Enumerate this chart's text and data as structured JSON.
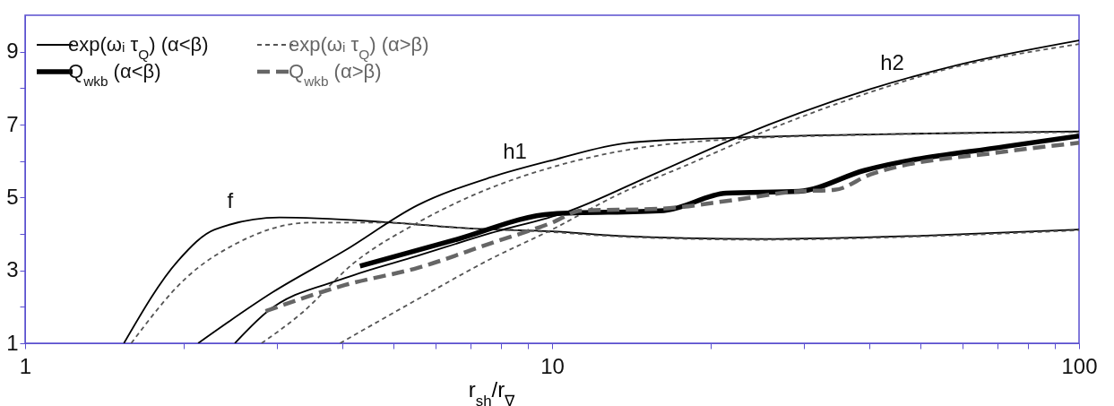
{
  "chart_data": {
    "type": "line",
    "xlabel": "r$_{sh}$/r$_{∇}$",
    "log": "x",
    "xlim": [
      1,
      100
    ],
    "ylim": [
      1,
      10
    ],
    "xticks": [
      1,
      {
        "value": 2,
        "label": null
      },
      {
        "value": 3,
        "label": null
      },
      {
        "value": 4,
        "label": null
      },
      {
        "value": 5,
        "label": null
      },
      {
        "value": 6,
        "label": null
      },
      {
        "value": 7,
        "label": null
      },
      {
        "value": 8,
        "label": null
      },
      {
        "value": 9,
        "label": null
      },
      10,
      {
        "value": 20,
        "label": null
      },
      {
        "value": 30,
        "label": null
      },
      {
        "value": 40,
        "label": null
      },
      {
        "value": 50,
        "label": null
      },
      {
        "value": 60,
        "label": null
      },
      {
        "value": 70,
        "label": null
      },
      {
        "value": 80,
        "label": null
      },
      {
        "value": 90,
        "label": null
      },
      100
    ],
    "yticks": [
      1,
      {
        "value": 2,
        "label": null
      },
      3,
      {
        "value": 4,
        "label": null
      },
      5,
      {
        "value": 6,
        "label": null
      },
      7,
      {
        "value": 8,
        "label": null
      },
      9
    ],
    "grid": false,
    "legend": "top left",
    "marker": "none",
    "series": [
      {
        "name": "exp(ωᵢ τ$_{Q}$) (α<β)",
        "color": "#000000",
        "line_style": "solid",
        "x": [
          1.54,
          1.95,
          2.29,
          3.04,
          4.75,
          7,
          10,
          13.3,
          25.1,
          50,
          100
        ],
        "values": [
          1,
          3.26,
          4.12,
          4.45,
          4.33,
          4.15,
          4.07,
          3.95,
          3.86,
          3.95,
          4.12
        ]
      },
      {
        "name": "exp(ωᵢ τ$_{Q}$) (α>β)",
        "color": "#555555",
        "line_style": "dashed",
        "x": [
          1.59,
          2.02,
          2.52,
          3.46,
          4.75,
          7,
          10,
          13.3,
          25.1,
          50,
          100
        ],
        "values": [
          1,
          2.79,
          3.74,
          4.31,
          4.31,
          4.15,
          4.05,
          3.93,
          3.84,
          3.93,
          4.1
        ]
      },
      {
        "color": "#000000",
        "line_style": "solid",
        "x": [
          2.13,
          2.95,
          4.05,
          5.56,
          7.64,
          10,
          13.95,
          22.1,
          43.7,
          100
        ],
        "values": [
          1,
          2.4,
          3.55,
          4.79,
          5.55,
          6.02,
          6.5,
          6.64,
          6.74,
          6.81
        ]
      },
      {
        "color": "#555555",
        "line_style": "dashed",
        "x": [
          2.81,
          3.35,
          4.18,
          5.56,
          7.64,
          10,
          13.95,
          22.1,
          43.7,
          100
        ],
        "values": [
          1,
          1.83,
          3.17,
          4.31,
          5.26,
          5.83,
          6.31,
          6.6,
          6.73,
          6.79
        ]
      },
      {
        "color": "#000000",
        "line_style": "solid",
        "x": [
          2.5,
          2.86,
          4.05,
          5.56,
          7.64,
          10.65,
          15.6,
          22.8,
          29.4,
          40.3,
          59,
          100
        ],
        "values": [
          1,
          1.83,
          2.79,
          3.4,
          4.02,
          4.6,
          5.64,
          6.69,
          7.31,
          7.98,
          8.64,
          9.31
        ]
      },
      {
        "color": "#555555",
        "line_style": "dashed",
        "x": [
          3.96,
          5.56,
          7.64,
          10,
          13.3,
          18.3,
          25.1,
          34.4,
          55.4,
          100
        ],
        "values": [
          1,
          2.21,
          3.31,
          4.12,
          5.07,
          5.93,
          6.79,
          7.55,
          8.5,
          9.21
        ]
      },
      {
        "name": "Q$_{wkb}$ (α<β)",
        "color": "#000000",
        "line_style": "solid",
        "x": [
          4.32,
          6.52,
          10,
          16.3,
          21.4,
          29.4,
          39.1,
          72.6,
          100
        ],
        "values": [
          3.12,
          3.83,
          4.55,
          4.64,
          5.12,
          5.17,
          5.74,
          6.4,
          6.69
        ]
      },
      {
        "name": "Q$_{wkb}$ (α>β)",
        "color": "#666666",
        "line_style": "dashed",
        "x": [
          2.86,
          4.05,
          5.56,
          7.64,
          10,
          11.36,
          16,
          22.1,
          29.4,
          34.4,
          40.3,
          72.6,
          100
        ],
        "values": [
          1.88,
          2.6,
          3.07,
          3.74,
          4.31,
          4.64,
          4.69,
          4.93,
          5.17,
          5.21,
          5.64,
          6.26,
          6.5
        ]
      }
    ],
    "annotations": [
      "f",
      "h1",
      "h2"
    ]
  }
}
